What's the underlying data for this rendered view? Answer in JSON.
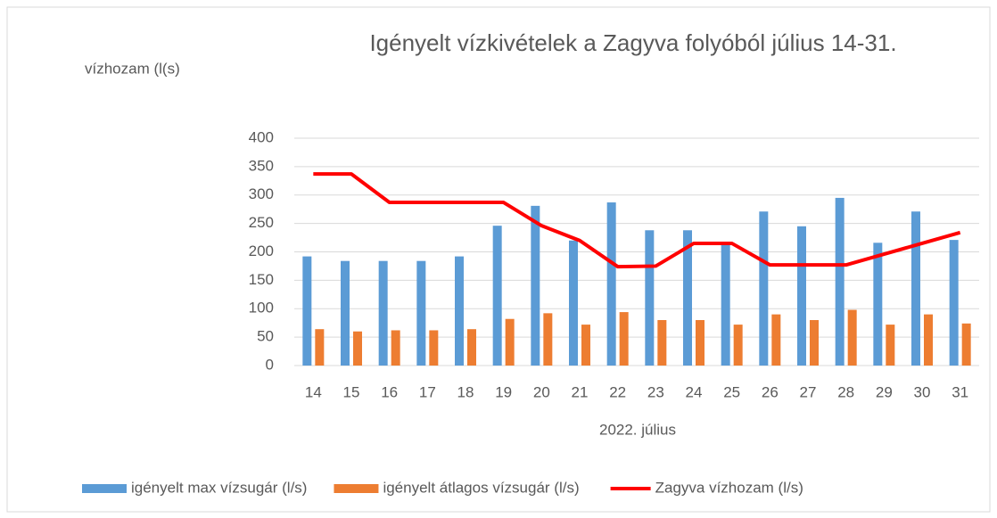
{
  "chart_data": {
    "type": "bar_line",
    "title": "Igényelt vízkivételek a Zagyva folyóból július 14-31.",
    "y_label": "vízhozam  (l(s)",
    "x_label": "2022. július",
    "categories": [
      "14",
      "15",
      "16",
      "17",
      "18",
      "19",
      "20",
      "21",
      "22",
      "23",
      "24",
      "25",
      "26",
      "27",
      "28",
      "29",
      "30",
      "31"
    ],
    "series": [
      {
        "name": "igényelt max vízsugár (l/s)",
        "color": "#5b9bd5",
        "kind": "bar",
        "values": [
          192,
          184,
          184,
          184,
          192,
          246,
          281,
          220,
          287,
          238,
          238,
          212,
          271,
          245,
          295,
          216,
          271,
          221
        ]
      },
      {
        "name": "igényelt átlagos vízsugár (l/s)",
        "color": "#ed7d31",
        "kind": "bar",
        "values": [
          64,
          60,
          62,
          62,
          64,
          82,
          92,
          72,
          94,
          80,
          80,
          72,
          90,
          80,
          98,
          72,
          90,
          74
        ]
      },
      {
        "name": "Zagyva vízhozam (l/s)",
        "color": "#ff0000",
        "kind": "line",
        "values": [
          337,
          337,
          287,
          287,
          287,
          287,
          246,
          220,
          174,
          175,
          215,
          215,
          177,
          177,
          177,
          196,
          215,
          234
        ]
      }
    ],
    "ylim": [
      0,
      400
    ],
    "yticks": [
      0,
      50,
      100,
      150,
      200,
      250,
      300,
      350,
      400
    ],
    "grid": true,
    "legend": "bottom"
  }
}
